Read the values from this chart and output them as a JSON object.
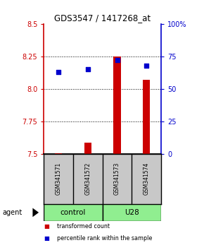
{
  "title": "GDS3547 / 1417268_at",
  "samples": [
    "GSM341571",
    "GSM341572",
    "GSM341573",
    "GSM341574"
  ],
  "bar_values": [
    7.502,
    7.585,
    8.25,
    8.07
  ],
  "bar_baseline": 7.5,
  "bar_color": "#cc0000",
  "dot_values": [
    63,
    65,
    72,
    68
  ],
  "dot_color": "#0000cc",
  "ylim_left": [
    7.5,
    8.5
  ],
  "ylim_right": [
    0,
    100
  ],
  "yticks_left": [
    7.5,
    7.75,
    8.0,
    8.25,
    8.5
  ],
  "yticks_right": [
    0,
    25,
    50,
    75,
    100
  ],
  "ytick_labels_right": [
    "0",
    "25",
    "50",
    "75",
    "100%"
  ],
  "grid_yticks": [
    7.75,
    8.0,
    8.25
  ],
  "group_labels": [
    "control",
    "U28"
  ],
  "group_sample_ranges": [
    [
      0,
      1
    ],
    [
      2,
      3
    ]
  ],
  "group_color": "#90ee90",
  "sample_bg": "#c8c8c8",
  "agent_label": "agent",
  "legend_colors": [
    "#cc0000",
    "#0000cc"
  ],
  "legend_labels": [
    "transformed count",
    "percentile rank within the sample"
  ],
  "tick_color_left": "#cc0000",
  "tick_color_right": "#0000cc",
  "bar_width": 0.25
}
